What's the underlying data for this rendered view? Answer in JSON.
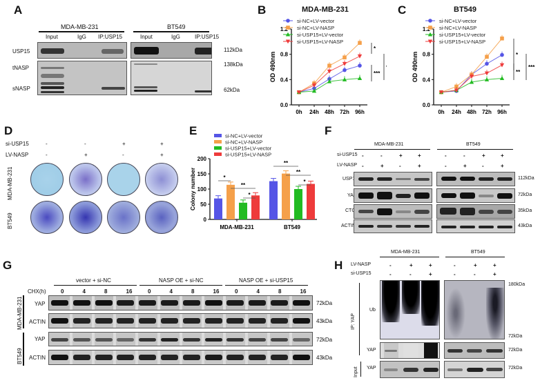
{
  "panels": {
    "A": {
      "label": "A",
      "cell_lines": [
        "MDA-MB-231",
        "BT549"
      ],
      "lanes": [
        "Input",
        "IgG",
        "IP:USP15"
      ],
      "rows": [
        "USP15",
        "tNASP",
        "sNASP"
      ],
      "mw": [
        "112kDa",
        "138kDa",
        "62kDa"
      ]
    },
    "B": {
      "label": "B",
      "title": "MDA-MB-231"
    },
    "C": {
      "label": "C",
      "title": "BT549"
    },
    "D": {
      "label": "D",
      "conditions": {
        "si_USP15_label": "si-USP15",
        "si_USP15": [
          "-",
          "-",
          "+",
          "+"
        ],
        "LV_NASP_label": "LV-NASP",
        "LV_NASP": [
          "-",
          "+",
          "-",
          "+"
        ]
      },
      "rows": [
        "MDA-MB-231",
        "BT549"
      ]
    },
    "E": {
      "label": "E"
    },
    "F": {
      "label": "F",
      "cell_lines": [
        "MDA-MB-231",
        "BT549"
      ],
      "si_USP15_label": "si-USP15",
      "LV_NASP_label": "LV-NASP",
      "si_USP15": [
        "-",
        "-",
        "+",
        "+"
      ],
      "LV_NASP": [
        "-",
        "+",
        "-",
        "+"
      ],
      "rows": [
        "USP15",
        "YAP",
        "CTGF",
        "ACTIN"
      ],
      "mw": [
        "112kDa",
        "72kDa",
        "35kDa",
        "43kDa"
      ]
    },
    "G": {
      "label": "G",
      "groups": [
        "vector + si-NC",
        "NASP OE + si-NC",
        "NASP OE + si-USP15"
      ],
      "chx_label": "CHX(h)",
      "timepoints": [
        "0",
        "4",
        "8",
        "16"
      ],
      "cell_lines": [
        "MDA-MB-231",
        "BT549"
      ],
      "rows": [
        "YAP",
        "ACTIN"
      ],
      "mw": [
        "72kDa",
        "43kDa"
      ]
    },
    "H": {
      "label": "H",
      "cell_lines": [
        "MDA-MB-231",
        "BT549"
      ],
      "LV_NASP_label": "LV-NASP",
      "si_USP15_label": "si-USP15",
      "LV_NASP": [
        "-",
        "+",
        "+"
      ],
      "si_USP15": [
        "-",
        "-",
        "+"
      ],
      "ip_label": "IP: YAP",
      "input_label": "Input",
      "rows": [
        "Ub",
        "YAP",
        "YAP"
      ],
      "mw_top": "180kDa",
      "mw_ub_bottom": "72kDa",
      "mw_yap": "72kDa",
      "mw_input": "72kDa"
    }
  },
  "colors": {
    "blue": "#5555e6",
    "orange": "#f5a04a",
    "green": "#22bb22",
    "red": "#ee3b3b"
  },
  "chart_data": [
    {
      "type": "line",
      "title": "MDA-MB-231",
      "xlabel": "",
      "ylabel": "OD 490nm",
      "x": [
        "0h",
        "24h",
        "48h",
        "72h",
        "96h"
      ],
      "ylim": [
        0.0,
        1.2
      ],
      "yticks": [
        "0.0",
        "0.4",
        "0.8",
        "1.2"
      ],
      "series": [
        {
          "name": "si-NC+LV-vector",
          "values": [
            0.2,
            0.26,
            0.41,
            0.55,
            0.62
          ]
        },
        {
          "name": "si-NC+LV-NASP",
          "values": [
            0.2,
            0.34,
            0.62,
            0.75,
            0.98
          ]
        },
        {
          "name": "si-USP15+LV-vector",
          "values": [
            0.2,
            0.22,
            0.37,
            0.4,
            0.42
          ]
        },
        {
          "name": "si-USP15+LV-NASP",
          "values": [
            0.2,
            0.31,
            0.53,
            0.65,
            0.77
          ]
        }
      ],
      "annotations": [
        "*",
        "***",
        "***"
      ]
    },
    {
      "type": "line",
      "title": "BT549",
      "xlabel": "",
      "ylabel": "OD 490nm",
      "x": [
        "0h",
        "24h",
        "48h",
        "72h",
        "96h"
      ],
      "ylim": [
        0.0,
        1.2
      ],
      "yticks": [
        "0.0",
        "0.4",
        "0.8",
        "1.2"
      ],
      "series": [
        {
          "name": "si-NC+LV-vector",
          "values": [
            0.2,
            0.22,
            0.48,
            0.65,
            0.79
          ]
        },
        {
          "name": "si-NC+LV-NASP",
          "values": [
            0.2,
            0.29,
            0.48,
            0.76,
            1.05
          ]
        },
        {
          "name": "si-USP15+LV-vector",
          "values": [
            0.2,
            0.23,
            0.36,
            0.4,
            0.42
          ]
        },
        {
          "name": "si-USP15+LV-NASP",
          "values": [
            0.2,
            0.23,
            0.45,
            0.5,
            0.63
          ]
        }
      ],
      "annotations": [
        "*",
        "**",
        "***"
      ]
    },
    {
      "type": "bar",
      "title": "",
      "xlabel": "",
      "ylabel": "Colony number",
      "categories": [
        "MDA-MB-231",
        "BT549"
      ],
      "ylim": [
        0,
        200
      ],
      "yticks": [
        "0",
        "50",
        "100",
        "150",
        "200"
      ],
      "series": [
        {
          "name": "si-NC+LV-vector",
          "values": [
            69,
            126
          ]
        },
        {
          "name": "si-NC+LV-NASP",
          "values": [
            114,
            151
          ]
        },
        {
          "name": "si-USP15+LV-vector",
          "values": [
            55,
            100
          ]
        },
        {
          "name": "si-USP15+LV-NASP",
          "values": [
            79,
            117
          ]
        }
      ],
      "annotations": [
        "*",
        "**",
        "*",
        "**",
        "**",
        "*"
      ],
      "legend_position": "top-left"
    }
  ]
}
